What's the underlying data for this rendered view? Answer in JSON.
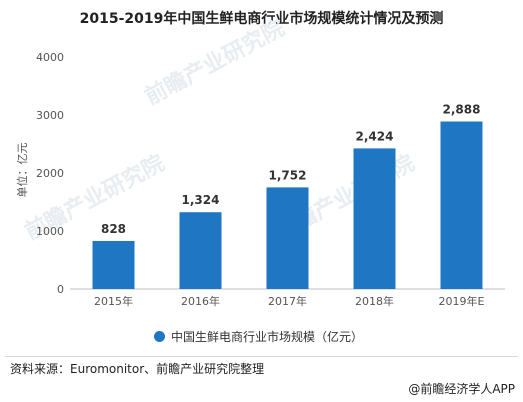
{
  "title": "2015-2019年中国生鲜电商行业市场规模统计情况及预测",
  "chart_data": {
    "type": "bar",
    "categories": [
      "2015年",
      "2016年",
      "2017年",
      "2018年",
      "2019年E"
    ],
    "series": [
      {
        "name": "中国生鲜电商行业市场规模（亿元）",
        "values": [
          828,
          1324,
          1752,
          2424,
          2888
        ]
      }
    ],
    "value_labels": [
      "828",
      "1,324",
      "1,752",
      "2,424",
      "2,888"
    ],
    "ylabel": "单位：亿元",
    "yticks": [
      "0",
      "1000",
      "2000",
      "3000",
      "4000"
    ],
    "ylim": [
      0,
      4000
    ],
    "legend_position": "bottom",
    "grid": false,
    "bar_color": "#1f77c4"
  },
  "legend": {
    "label": "中国生鲜电商行业市场规模（亿元）"
  },
  "source": "资料来源：Euromonitor、前瞻产业研究院整理",
  "footer": "@前瞻经济学人APP",
  "watermark": [
    "前瞻产业研究院",
    "前瞻产业研究院",
    "前瞻产业研究院"
  ]
}
